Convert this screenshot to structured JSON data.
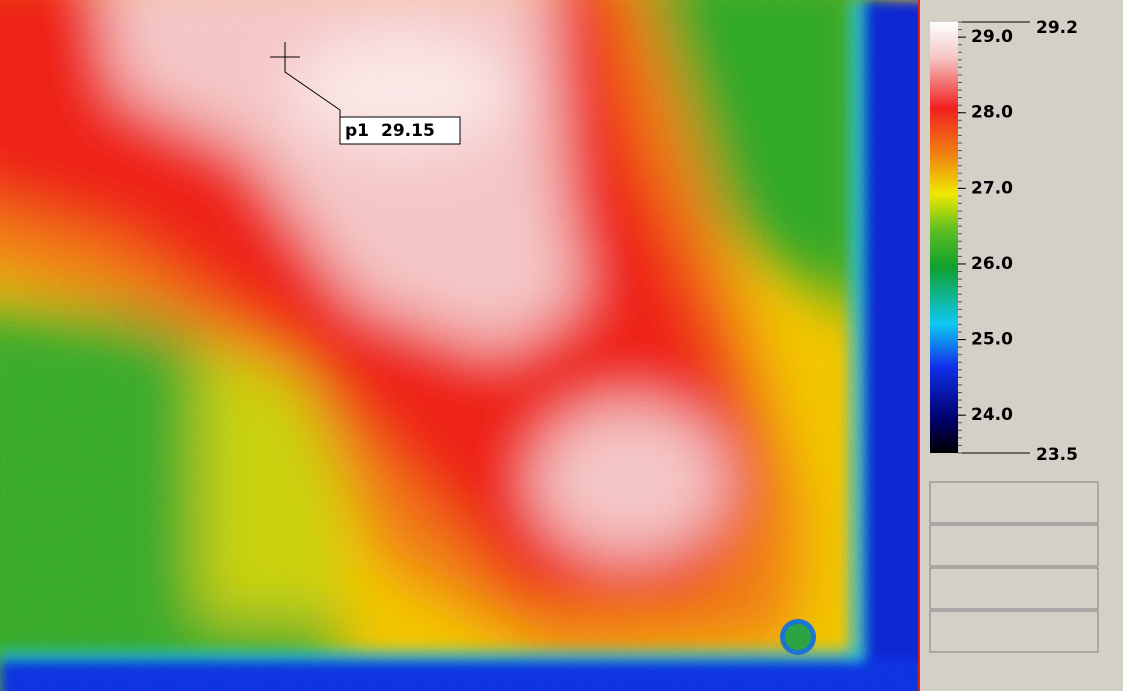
{
  "scale": {
    "max": 29.2,
    "min": 23.5,
    "ticks": [
      {
        "value": 29,
        "label": "29.0"
      },
      {
        "value": 28,
        "label": "28.0"
      },
      {
        "value": 27,
        "label": "27.0"
      },
      {
        "value": 26,
        "label": "26.0"
      },
      {
        "value": 25,
        "label": "25.0"
      },
      {
        "value": 24,
        "label": "24.0"
      }
    ]
  },
  "marker": {
    "label": "p1",
    "value": 29.15
  }
}
